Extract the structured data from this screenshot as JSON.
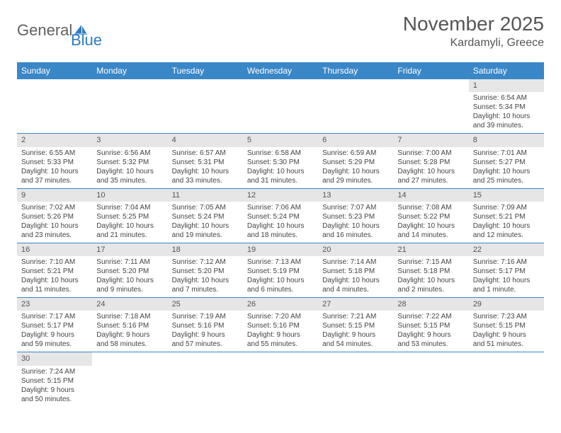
{
  "logo": {
    "text1": "General",
    "text2": "Blue"
  },
  "title": "November 2025",
  "location": "Kardamyli, Greece",
  "colors": {
    "header_bg": "#3a87c8",
    "header_text": "#ffffff",
    "daynum_bg": "#e6e6e6",
    "cell_border": "#3a87c8",
    "body_text": "#444444",
    "logo_gray": "#606060",
    "logo_blue": "#2f7cc0"
  },
  "weekdays": [
    "Sunday",
    "Monday",
    "Tuesday",
    "Wednesday",
    "Thursday",
    "Friday",
    "Saturday"
  ],
  "weeks": [
    [
      null,
      null,
      null,
      null,
      null,
      null,
      {
        "n": "1",
        "sr": "6:54 AM",
        "ss": "5:34 PM",
        "dl": "10 hours and 39 minutes."
      }
    ],
    [
      {
        "n": "2",
        "sr": "6:55 AM",
        "ss": "5:33 PM",
        "dl": "10 hours and 37 minutes."
      },
      {
        "n": "3",
        "sr": "6:56 AM",
        "ss": "5:32 PM",
        "dl": "10 hours and 35 minutes."
      },
      {
        "n": "4",
        "sr": "6:57 AM",
        "ss": "5:31 PM",
        "dl": "10 hours and 33 minutes."
      },
      {
        "n": "5",
        "sr": "6:58 AM",
        "ss": "5:30 PM",
        "dl": "10 hours and 31 minutes."
      },
      {
        "n": "6",
        "sr": "6:59 AM",
        "ss": "5:29 PM",
        "dl": "10 hours and 29 minutes."
      },
      {
        "n": "7",
        "sr": "7:00 AM",
        "ss": "5:28 PM",
        "dl": "10 hours and 27 minutes."
      },
      {
        "n": "8",
        "sr": "7:01 AM",
        "ss": "5:27 PM",
        "dl": "10 hours and 25 minutes."
      }
    ],
    [
      {
        "n": "9",
        "sr": "7:02 AM",
        "ss": "5:26 PM",
        "dl": "10 hours and 23 minutes."
      },
      {
        "n": "10",
        "sr": "7:04 AM",
        "ss": "5:25 PM",
        "dl": "10 hours and 21 minutes."
      },
      {
        "n": "11",
        "sr": "7:05 AM",
        "ss": "5:24 PM",
        "dl": "10 hours and 19 minutes."
      },
      {
        "n": "12",
        "sr": "7:06 AM",
        "ss": "5:24 PM",
        "dl": "10 hours and 18 minutes."
      },
      {
        "n": "13",
        "sr": "7:07 AM",
        "ss": "5:23 PM",
        "dl": "10 hours and 16 minutes."
      },
      {
        "n": "14",
        "sr": "7:08 AM",
        "ss": "5:22 PM",
        "dl": "10 hours and 14 minutes."
      },
      {
        "n": "15",
        "sr": "7:09 AM",
        "ss": "5:21 PM",
        "dl": "10 hours and 12 minutes."
      }
    ],
    [
      {
        "n": "16",
        "sr": "7:10 AM",
        "ss": "5:21 PM",
        "dl": "10 hours and 11 minutes."
      },
      {
        "n": "17",
        "sr": "7:11 AM",
        "ss": "5:20 PM",
        "dl": "10 hours and 9 minutes."
      },
      {
        "n": "18",
        "sr": "7:12 AM",
        "ss": "5:20 PM",
        "dl": "10 hours and 7 minutes."
      },
      {
        "n": "19",
        "sr": "7:13 AM",
        "ss": "5:19 PM",
        "dl": "10 hours and 6 minutes."
      },
      {
        "n": "20",
        "sr": "7:14 AM",
        "ss": "5:18 PM",
        "dl": "10 hours and 4 minutes."
      },
      {
        "n": "21",
        "sr": "7:15 AM",
        "ss": "5:18 PM",
        "dl": "10 hours and 2 minutes."
      },
      {
        "n": "22",
        "sr": "7:16 AM",
        "ss": "5:17 PM",
        "dl": "10 hours and 1 minute."
      }
    ],
    [
      {
        "n": "23",
        "sr": "7:17 AM",
        "ss": "5:17 PM",
        "dl": "9 hours and 59 minutes."
      },
      {
        "n": "24",
        "sr": "7:18 AM",
        "ss": "5:16 PM",
        "dl": "9 hours and 58 minutes."
      },
      {
        "n": "25",
        "sr": "7:19 AM",
        "ss": "5:16 PM",
        "dl": "9 hours and 57 minutes."
      },
      {
        "n": "26",
        "sr": "7:20 AM",
        "ss": "5:16 PM",
        "dl": "9 hours and 55 minutes."
      },
      {
        "n": "27",
        "sr": "7:21 AM",
        "ss": "5:15 PM",
        "dl": "9 hours and 54 minutes."
      },
      {
        "n": "28",
        "sr": "7:22 AM",
        "ss": "5:15 PM",
        "dl": "9 hours and 53 minutes."
      },
      {
        "n": "29",
        "sr": "7:23 AM",
        "ss": "5:15 PM",
        "dl": "9 hours and 51 minutes."
      }
    ],
    [
      {
        "n": "30",
        "sr": "7:24 AM",
        "ss": "5:15 PM",
        "dl": "9 hours and 50 minutes."
      },
      null,
      null,
      null,
      null,
      null,
      null
    ]
  ],
  "labels": {
    "sunrise": "Sunrise: ",
    "sunset": "Sunset: ",
    "daylight": "Daylight: "
  }
}
